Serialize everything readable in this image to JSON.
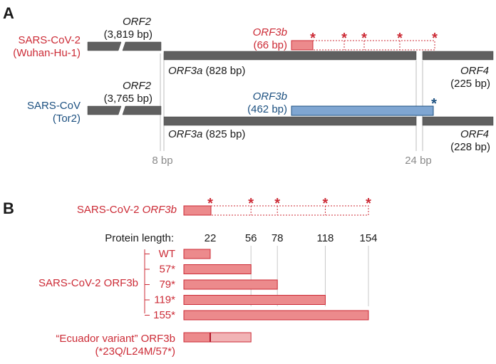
{
  "colors": {
    "red": "#cc2b36",
    "red_fill": "#ec8a8c",
    "blue": "#1c5080",
    "blue_fill": "#7fa6d2",
    "gray_bar": "#606060",
    "gray_text": "#8a8a8a",
    "dark_text": "#1a1a1a"
  },
  "panel_a": {
    "label": "A",
    "sars2": {
      "name": "SARS-CoV-2",
      "strain": "(Wuhan-Hu-1)",
      "orf2_name": "ORF2",
      "orf2_len": "(3,819 bp)",
      "orf3b_name": "ORF3b",
      "orf3b_len": "(66 bp)",
      "orf3a_name": "ORF3a",
      "orf3a_len": "(828 bp)",
      "orf4_name": "ORF4",
      "orf4_len": "(225 bp)"
    },
    "sars1": {
      "name": "SARS-CoV",
      "strain": "(Tor2)",
      "orf2_name": "ORF2",
      "orf2_len": "(3,765 bp)",
      "orf3b_name": "ORF3b",
      "orf3b_len": "(462 bp)",
      "orf3a_name": "ORF3a",
      "orf3a_len": "(825 bp)",
      "orf4_name": "ORF4",
      "orf4_len": "(228 bp)"
    },
    "gap_left": "8 bp",
    "gap_right": "24 bp"
  },
  "panel_b": {
    "label": "B",
    "header_prefix": "SARS-CoV-2",
    "header_gene": "ORF3b",
    "protein_length_label": "Protein length:",
    "lengths": [
      "22",
      "56",
      "78",
      "118",
      "154"
    ],
    "group_label": "SARS-CoV-2 ORF3b",
    "variants": [
      {
        "label": "WT",
        "length": 22
      },
      {
        "label": "57*",
        "length": 56
      },
      {
        "label": "79*",
        "length": 78
      },
      {
        "label": "119*",
        "length": 118
      },
      {
        "label": "155*",
        "length": 154
      }
    ],
    "ecuador_label": "“Ecuador variant” ORF3b",
    "ecuador_sub": "(*23Q/L24M/57*)",
    "ecuador_length": 56,
    "ecuador_original_stop": 22
  },
  "stop_symbol": "*"
}
